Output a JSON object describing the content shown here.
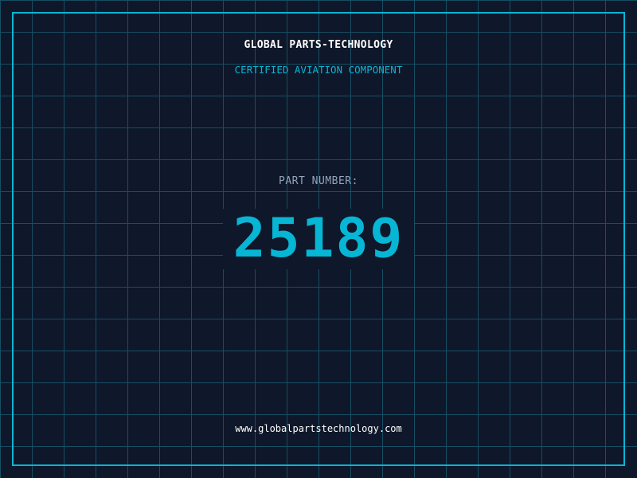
{
  "header": {
    "title": "GLOBAL PARTS-TECHNOLOGY",
    "subtitle": "CERTIFIED AVIATION COMPONENT"
  },
  "part": {
    "label": "PART NUMBER:",
    "number": "25189"
  },
  "footer": {
    "url": "www.globalpartstechnology.com"
  },
  "colors": {
    "background": "#0f172a",
    "accent": "#06b6d4",
    "grid": "#164e63",
    "label": "#94a3b8"
  }
}
